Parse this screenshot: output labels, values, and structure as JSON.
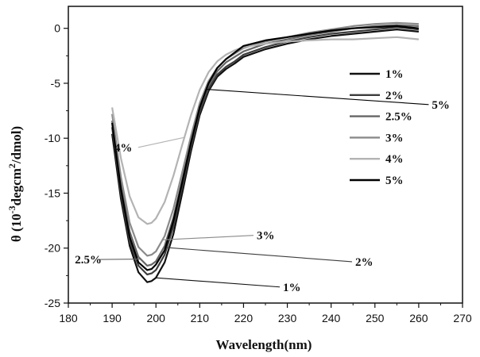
{
  "chart_data": {
    "type": "line",
    "title": "",
    "xlabel": "Wavelength(nm)",
    "ylabel": {
      "prefix": "θ (10",
      "exp1": "-3",
      "middle": "degcm",
      "exp2": "2",
      "suffix": "/dmol)"
    },
    "xlim": [
      180,
      270
    ],
    "ylim": [
      -25,
      2
    ],
    "xticks": [
      180,
      190,
      200,
      210,
      220,
      230,
      240,
      250,
      260,
      270
    ],
    "yticks": [
      0,
      -5,
      -10,
      -15,
      -20,
      -25
    ],
    "grid": false,
    "legend_position": "right",
    "series": [
      {
        "name": "1%",
        "color": "#111111",
        "x": [
          190,
          192,
          194,
          196,
          198,
          199,
          200,
          202,
          204,
          206,
          208,
          210,
          212,
          214,
          216,
          218,
          220,
          225,
          230,
          235,
          240,
          245,
          250,
          255,
          260
        ],
        "y": [
          -9.6,
          -15.5,
          -19.8,
          -22.2,
          -23.1,
          -23.0,
          -22.7,
          -21.3,
          -18.7,
          -15.0,
          -11.2,
          -7.9,
          -5.7,
          -4.4,
          -3.7,
          -3.2,
          -2.6,
          -1.9,
          -1.4,
          -1.0,
          -0.7,
          -0.5,
          -0.3,
          -0.1,
          -0.3
        ]
      },
      {
        "name": "2%",
        "color": "#3d3d3d",
        "x": [
          190,
          192,
          194,
          196,
          198,
          199,
          200,
          202,
          204,
          206,
          208,
          210,
          212,
          214,
          216,
          218,
          220,
          225,
          230,
          235,
          240,
          245,
          250,
          255,
          260
        ],
        "y": [
          -9.0,
          -15.0,
          -19.4,
          -21.6,
          -22.4,
          -22.3,
          -22.0,
          -20.6,
          -18.0,
          -14.4,
          -10.8,
          -7.6,
          -5.5,
          -4.2,
          -3.5,
          -3.0,
          -2.4,
          -1.7,
          -1.2,
          -0.8,
          -0.5,
          -0.3,
          -0.1,
          0.1,
          -0.1
        ]
      },
      {
        "name": "2.5%",
        "color": "#666666",
        "x": [
          190,
          192,
          194,
          196,
          198,
          199,
          200,
          202,
          204,
          206,
          208,
          210,
          212,
          214,
          216,
          218,
          220,
          225,
          230,
          235,
          240,
          245,
          250,
          255,
          260
        ],
        "y": [
          -8.4,
          -14.2,
          -18.5,
          -20.8,
          -21.6,
          -21.5,
          -21.2,
          -19.8,
          -17.2,
          -13.8,
          -10.3,
          -7.2,
          -5.2,
          -3.9,
          -3.1,
          -2.6,
          -2.1,
          -1.4,
          -1.0,
          -0.6,
          -0.3,
          0.0,
          0.2,
          0.3,
          0.2
        ]
      },
      {
        "name": "3%",
        "color": "#8a8a8a",
        "x": [
          190,
          192,
          194,
          196,
          198,
          199,
          200,
          202,
          204,
          206,
          208,
          210,
          212,
          214,
          216,
          218,
          220,
          225,
          230,
          235,
          240,
          245,
          250,
          255,
          260
        ],
        "y": [
          -7.8,
          -13.5,
          -17.7,
          -19.9,
          -20.7,
          -20.6,
          -20.3,
          -18.9,
          -16.4,
          -13.1,
          -9.8,
          -6.8,
          -4.8,
          -3.6,
          -2.8,
          -2.3,
          -1.8,
          -1.2,
          -0.8,
          -0.4,
          -0.1,
          0.2,
          0.4,
          0.5,
          0.4
        ]
      },
      {
        "name": "4%",
        "color": "#b3b3b3",
        "x": [
          190,
          192,
          194,
          196,
          198,
          199,
          200,
          202,
          204,
          206,
          208,
          210,
          212,
          214,
          216,
          218,
          220,
          225,
          230,
          235,
          240,
          245,
          250,
          255,
          260
        ],
        "y": [
          -7.2,
          -11.8,
          -15.3,
          -17.2,
          -17.8,
          -17.7,
          -17.3,
          -15.8,
          -13.4,
          -10.6,
          -7.9,
          -5.6,
          -4.0,
          -3.0,
          -2.4,
          -2.0,
          -1.7,
          -1.4,
          -1.2,
          -1.1,
          -1.0,
          -1.0,
          -0.9,
          -0.8,
          -1.0
        ]
      },
      {
        "name": "5%",
        "color": "#000000",
        "x": [
          190,
          192,
          194,
          196,
          198,
          199,
          200,
          202,
          204,
          206,
          208,
          210,
          212,
          214,
          216,
          218,
          220,
          225,
          230,
          235,
          240,
          245,
          250,
          255,
          260
        ],
        "y": [
          -8.6,
          -14.6,
          -19.0,
          -21.3,
          -22.0,
          -21.9,
          -21.5,
          -20.2,
          -17.5,
          -14.0,
          -10.4,
          -7.2,
          -5.0,
          -3.6,
          -2.8,
          -2.2,
          -1.6,
          -1.1,
          -0.8,
          -0.5,
          -0.2,
          0.0,
          0.1,
          0.2,
          0.0
        ]
      }
    ],
    "annotations": [
      {
        "text": "5%",
        "series": "5%",
        "at_x": 211.5,
        "label_x": 263,
        "label_y": -7.3
      },
      {
        "text": "4%",
        "series": "4%",
        "at_x": 206.5,
        "label_x": 190.5,
        "label_y": -11.2
      },
      {
        "text": "3%",
        "series": "3%",
        "at_x": 201.5,
        "label_x": 223,
        "label_y": -19.2
      },
      {
        "text": "2.5%",
        "series": "2.5%",
        "at_x": 196.5,
        "label_x": 181.5,
        "label_y": -21.4
      },
      {
        "text": "2%",
        "series": "2%",
        "at_x": 202.5,
        "label_x": 245.5,
        "label_y": -21.6
      },
      {
        "text": "1%",
        "series": "1%",
        "at_x": 200,
        "label_x": 229,
        "label_y": -23.9
      }
    ]
  }
}
